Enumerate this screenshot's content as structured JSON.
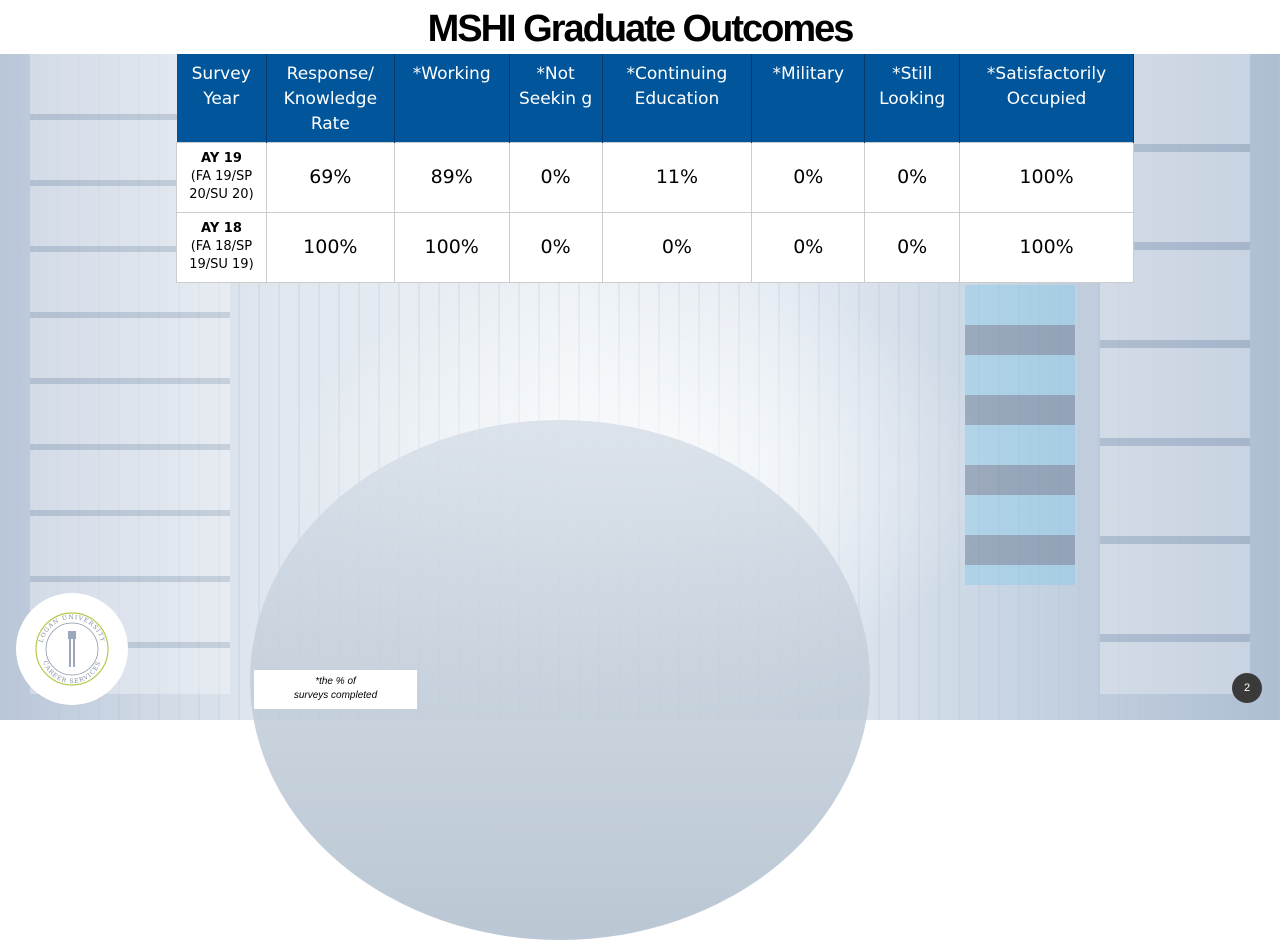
{
  "title": "MSHI Graduate Outcomes",
  "table": {
    "headers": [
      "Survey Year",
      "Response/ Knowledge Rate",
      "*Working",
      "*Not Seekin g",
      "*Continuing Education",
      "*Military",
      "*Still Looking",
      "*Satisfactorily Occupied"
    ],
    "rows": [
      {
        "year": "AY 19",
        "terms": "(FA 19/SP 20/SU 20)",
        "values": [
          "69%",
          "89%",
          "0%",
          "11%",
          "0%",
          "0%",
          "100%"
        ]
      },
      {
        "year": "AY 18",
        "terms": "(FA 18/SP 19/SU 19)",
        "values": [
          "100%",
          "100%",
          "0%",
          "0%",
          "0%",
          "0%",
          "100%"
        ]
      }
    ]
  },
  "footnote": {
    "line1": "*the % of",
    "line2": "surveys completed"
  },
  "logo": {
    "top": "LOGAN UNIVERSITY",
    "bottom": "CAREER SERVICES"
  },
  "page_number": "2",
  "colors": {
    "header": "#01569b"
  }
}
